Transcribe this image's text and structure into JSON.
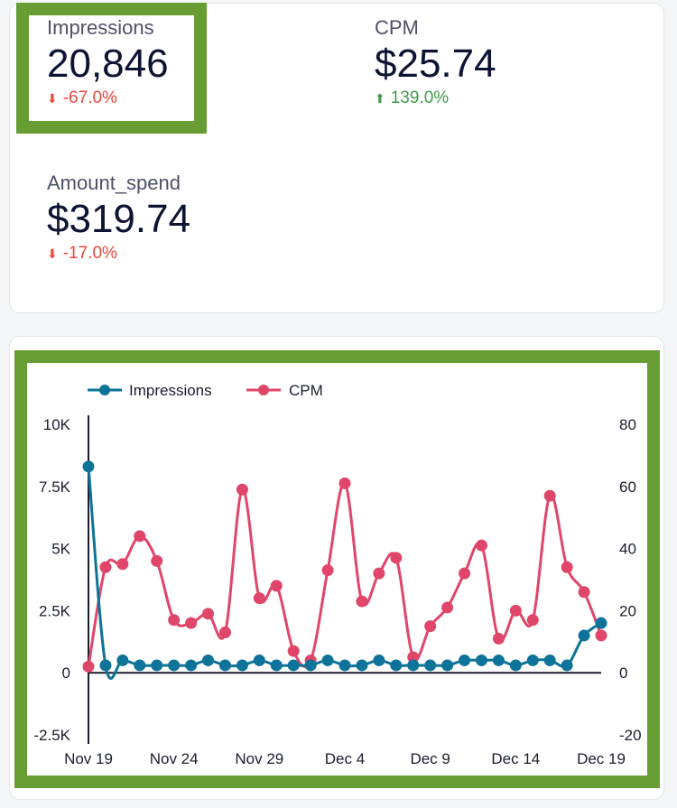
{
  "kpis": [
    {
      "label": "Impressions",
      "value": "20,846",
      "delta": "-67.0%",
      "direction": "down"
    },
    {
      "label": "CPM",
      "value": "$25.74",
      "delta": "139.0%",
      "direction": "up"
    },
    {
      "label": "Amount_spend",
      "value": "$319.74",
      "delta": "-17.0%",
      "direction": "down"
    }
  ],
  "colors": {
    "highlight": "#689d34",
    "impressions": "#0e7398",
    "cpm": "#e0466a",
    "down": "#f0463c",
    "up": "#3f9a4a"
  },
  "chart_data": {
    "type": "line",
    "legend_position": "top-left",
    "x": [
      "Nov 19",
      "Nov 20",
      "Nov 21",
      "Nov 22",
      "Nov 23",
      "Nov 24",
      "Nov 25",
      "Nov 26",
      "Nov 27",
      "Nov 28",
      "Nov 29",
      "Nov 30",
      "Dec 1",
      "Dec 2",
      "Dec 3",
      "Dec 4",
      "Dec 5",
      "Dec 6",
      "Dec 7",
      "Dec 8",
      "Dec 9",
      "Dec 10",
      "Dec 11",
      "Dec 12",
      "Dec 13",
      "Dec 14",
      "Dec 15",
      "Dec 16",
      "Dec 17",
      "Dec 18",
      "Dec 19"
    ],
    "x_tick_labels": [
      "Nov 19",
      "Nov 24",
      "Nov 29",
      "Dec 4",
      "Dec 9",
      "Dec 14",
      "Dec 19"
    ],
    "y_left": {
      "range": [
        -2500,
        10000
      ],
      "tick_labels": [
        "10K",
        "7.5K",
        "5K",
        "2.5K",
        "0",
        "-2.5K"
      ],
      "ticks": [
        10000,
        7500,
        5000,
        2500,
        0,
        -2500
      ]
    },
    "y_right": {
      "range": [
        -20,
        80
      ],
      "tick_labels": [
        "80",
        "60",
        "40",
        "20",
        "0",
        "-20"
      ],
      "ticks": [
        80,
        60,
        40,
        20,
        0,
        -20
      ]
    },
    "series": [
      {
        "name": "Impressions",
        "axis": "left",
        "values": [
          8300,
          300,
          500,
          300,
          300,
          300,
          300,
          500,
          300,
          300,
          500,
          300,
          300,
          300,
          500,
          300,
          300,
          500,
          300,
          300,
          300,
          300,
          500,
          500,
          500,
          300,
          500,
          500,
          300,
          1500,
          2000
        ]
      },
      {
        "name": "CPM",
        "axis": "right",
        "values": [
          2,
          34,
          35,
          44,
          36,
          17,
          16,
          19,
          13,
          59,
          24,
          28,
          7,
          4,
          33,
          61,
          23,
          32,
          37,
          5,
          15,
          21,
          32,
          41,
          11,
          20,
          17,
          57,
          34,
          26,
          12
        ]
      }
    ]
  }
}
